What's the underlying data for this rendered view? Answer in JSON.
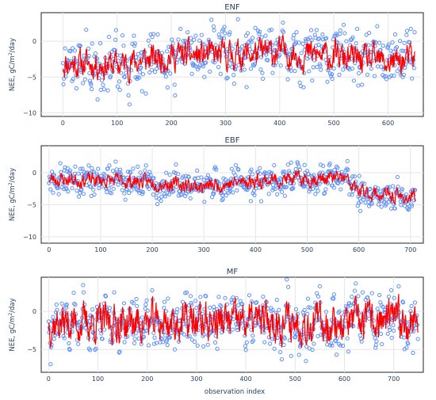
{
  "figure": {
    "xlabel": "observation index"
  },
  "chart_data": [
    {
      "type": "scatter",
      "title": "ENF",
      "ylabel": "NEE, gC/m²/day",
      "xlim": [
        -40,
        665
      ],
      "ylim": [
        -10.5,
        4
      ],
      "xticks": [
        0,
        100,
        200,
        300,
        400,
        500,
        600
      ],
      "yticks": [
        0,
        -5,
        -10
      ],
      "n": 650,
      "series": [
        {
          "kind": "observed-points",
          "color": "#5b8ff9",
          "seed": 11,
          "noise": 2.0,
          "slope": 0
        },
        {
          "kind": "model-line",
          "color": "#ff0000",
          "seed": 11
        }
      ],
      "baseline": [
        [
          0,
          -3
        ],
        [
          100,
          -3.3
        ],
        [
          200,
          -2
        ],
        [
          300,
          -2
        ],
        [
          400,
          -1.5
        ],
        [
          500,
          -2.2
        ],
        [
          600,
          -3
        ],
        [
          650,
          -2.5
        ]
      ],
      "amplitude": 1.6
    },
    {
      "type": "scatter",
      "title": "EBF",
      "ylabel": "NEE, gC/m²/day",
      "xlim": [
        -15,
        725
      ],
      "ylim": [
        -11,
        4.2
      ],
      "xticks": [
        0,
        100,
        200,
        300,
        400,
        500,
        600,
        700
      ],
      "yticks": [
        0,
        -5,
        -10
      ],
      "n": 710,
      "series": [
        {
          "kind": "observed-points",
          "color": "#5b8ff9",
          "seed": 23,
          "noise": 1.2
        },
        {
          "kind": "model-line",
          "color": "#ff0000",
          "seed": 23
        }
      ],
      "baseline": [
        [
          0,
          -1
        ],
        [
          100,
          -1.2
        ],
        [
          200,
          -1.5
        ],
        [
          300,
          -2.2
        ],
        [
          400,
          -1.2
        ],
        [
          500,
          -1
        ],
        [
          570,
          -0.8
        ],
        [
          600,
          -3
        ],
        [
          700,
          -4
        ]
      ],
      "amplitude": 0.9
    },
    {
      "type": "scatter",
      "title": "MF",
      "ylabel": "NEE, gC/m²/day",
      "xlim": [
        -15,
        760
      ],
      "ylim": [
        -8,
        4.5
      ],
      "xticks": [
        0,
        100,
        200,
        300,
        400,
        500,
        600,
        700
      ],
      "yticks": [
        0,
        -5
      ],
      "n": 750,
      "series": [
        {
          "kind": "observed-points",
          "color": "#5b8ff9",
          "seed": 37,
          "noise": 1.5
        },
        {
          "kind": "model-line",
          "color": "#ff0000",
          "seed": 37
        }
      ],
      "baseline": [
        [
          0,
          -1.5
        ],
        [
          200,
          -1.5
        ],
        [
          400,
          -1.3
        ],
        [
          600,
          -1.5
        ],
        [
          750,
          -1
        ]
      ],
      "amplitude": 2.0
    }
  ]
}
